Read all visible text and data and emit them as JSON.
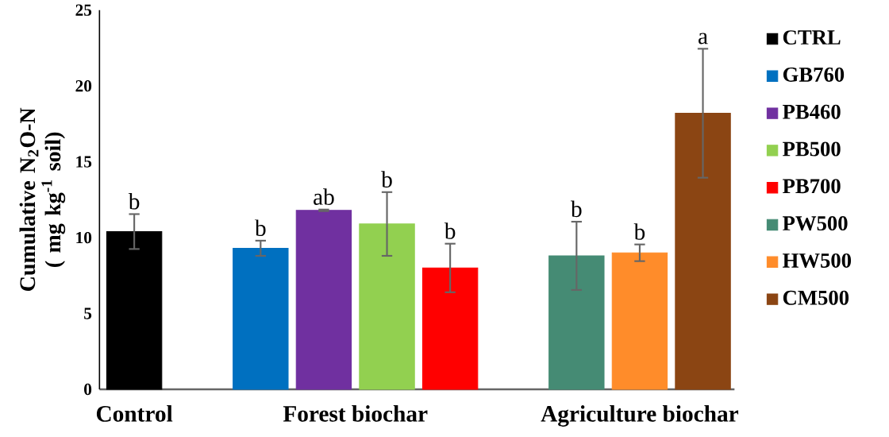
{
  "chart_data": {
    "type": "bar",
    "ylabel": "Cumulative N$_{2}$O-N ( mg kg$^{-1}$ soil)",
    "categories": [
      "Control",
      "Forest biochar",
      "Agriculture biochar"
    ],
    "ylim": [
      0,
      25
    ],
    "yticks": [
      0,
      5,
      10,
      15,
      20,
      25
    ],
    "legend": "right",
    "grid": false,
    "series": [
      {
        "name": "CTRL",
        "color": "#000000",
        "values": [
          10.4,
          null,
          null
        ],
        "errors": [
          1.15,
          null,
          null
        ],
        "value_labels": [
          "b",
          null,
          null
        ]
      },
      {
        "name": "GB760",
        "color": "#0070c0",
        "values": [
          null,
          9.3,
          null
        ],
        "errors": [
          null,
          0.5,
          null
        ],
        "value_labels": [
          null,
          "b",
          null
        ]
      },
      {
        "name": "PB460",
        "color": "#7030a0",
        "values": [
          null,
          11.8,
          null
        ],
        "errors": [
          null,
          0.05,
          null
        ],
        "value_labels": [
          null,
          "ab",
          null
        ]
      },
      {
        "name": "PB500",
        "color": "#92d050",
        "values": [
          null,
          10.9,
          null
        ],
        "errors": [
          null,
          2.1,
          null
        ],
        "value_labels": [
          null,
          "b",
          null
        ]
      },
      {
        "name": "PB700",
        "color": "#ff0000",
        "values": [
          null,
          8.0,
          null
        ],
        "errors": [
          null,
          1.6,
          null
        ],
        "value_labels": [
          null,
          "b",
          null
        ]
      },
      {
        "name": "PW500",
        "color": "#458b74",
        "values": [
          null,
          null,
          8.8
        ],
        "errors": [
          null,
          null,
          2.25
        ],
        "value_labels": [
          null,
          null,
          "b"
        ]
      },
      {
        "name": "HW500",
        "color": "#ff8c2a",
        "values": [
          null,
          null,
          9.0
        ],
        "errors": [
          null,
          null,
          0.55
        ],
        "value_labels": [
          null,
          null,
          "b"
        ]
      },
      {
        "name": "CM500",
        "color": "#8b4513",
        "values": [
          null,
          null,
          18.2
        ],
        "errors": [
          null,
          null,
          4.25
        ],
        "value_labels": [
          null,
          null,
          "a"
        ]
      }
    ]
  }
}
